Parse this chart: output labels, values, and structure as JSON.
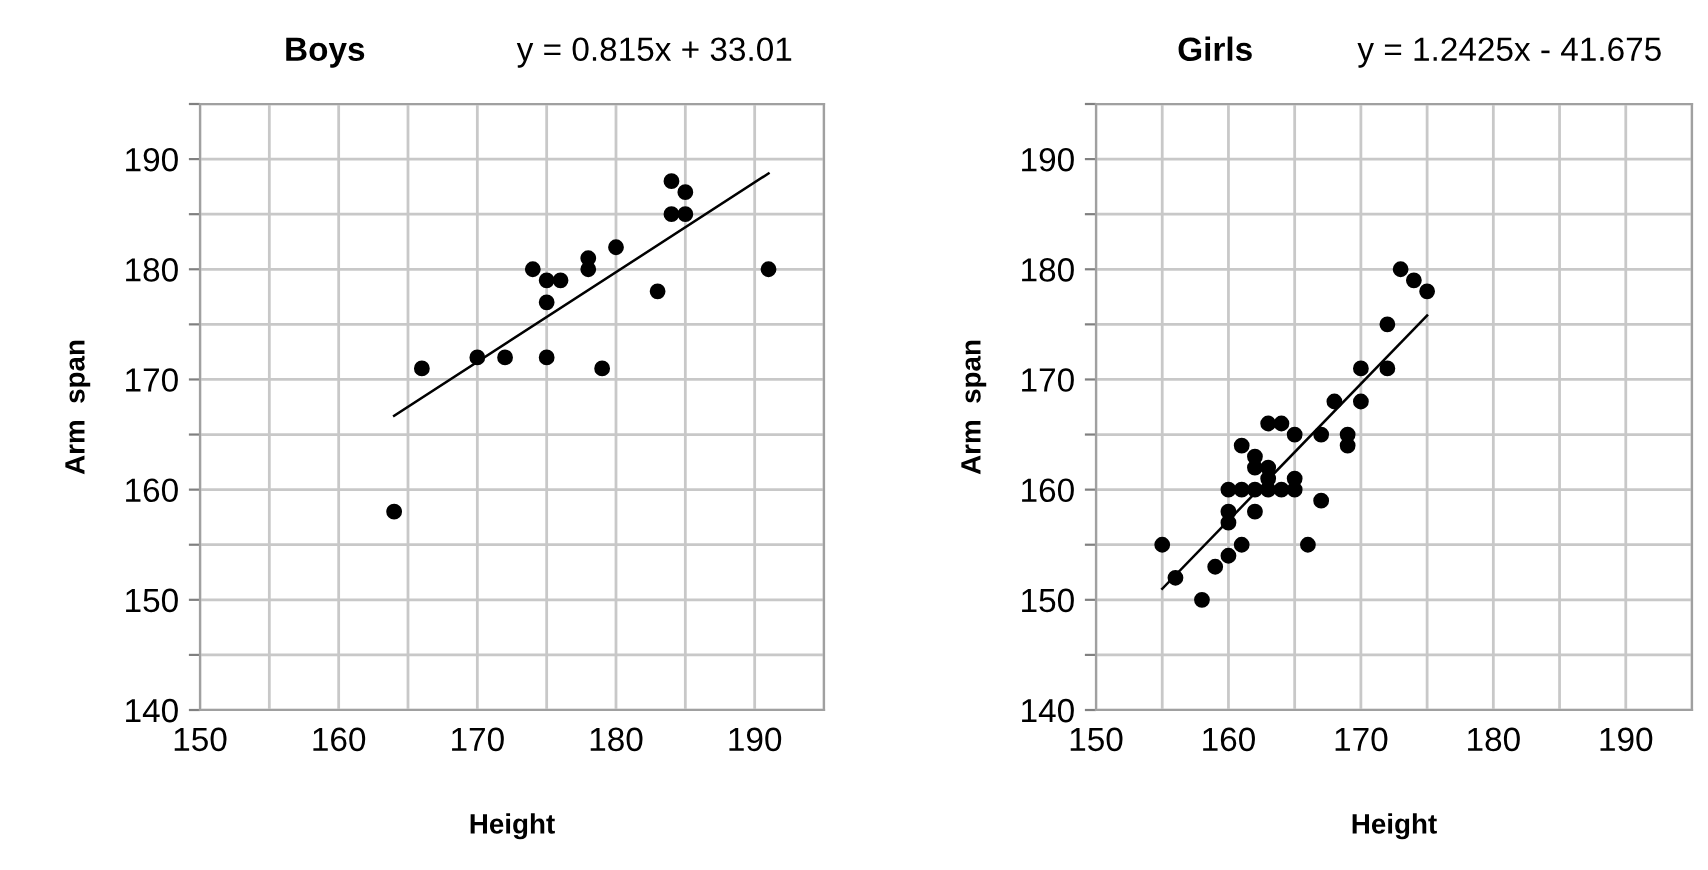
{
  "chart_data": [
    {
      "type": "scatter",
      "title": "Boys",
      "annotations": [
        "y = 0.815x + 33.01"
      ],
      "xlabel": "Height",
      "ylabel": "Arm  span",
      "xlim": [
        150,
        195
      ],
      "ylim": [
        140,
        195
      ],
      "xticks": [
        150,
        {
          "value": 155,
          "label": null
        },
        160,
        {
          "value": 165,
          "label": null
        },
        170,
        {
          "value": 175,
          "label": null
        },
        180,
        {
          "value": 185,
          "label": null
        },
        190,
        {
          "value": 195,
          "label": null
        }
      ],
      "yticks": [
        140,
        {
          "value": 145,
          "label": null
        },
        150,
        {
          "value": 155,
          "label": null
        },
        160,
        {
          "value": 165,
          "label": null
        },
        170,
        {
          "value": 175,
          "label": null
        },
        180,
        {
          "value": 185,
          "label": null
        },
        190,
        {
          "value": 195,
          "label": null
        }
      ],
      "grid": true,
      "series": [
        {
          "marker": "circle",
          "color": "#000000",
          "x": [
            184,
            185,
            184,
            185,
            174,
            175,
            176,
            178,
            178,
            180,
            175,
            191,
            183,
            170,
            172,
            175,
            166,
            179,
            164
          ],
          "values": [
            188,
            187,
            185,
            185,
            180,
            179,
            179,
            181,
            180,
            182,
            177,
            180,
            178,
            172,
            172,
            172,
            171,
            171,
            158
          ]
        },
        {
          "type": "line",
          "color": "#000000",
          "x": [
            164,
            191
          ],
          "values": [
            166.7,
            188.7
          ]
        }
      ]
    },
    {
      "type": "scatter",
      "title": "Girls",
      "annotations": [
        "y = 1.2425x - 41.675"
      ],
      "xlabel": "Height",
      "ylabel": "Arm  span",
      "xlim": [
        150,
        195
      ],
      "ylim": [
        140,
        195
      ],
      "xticks": [
        150,
        {
          "value": 155,
          "label": null
        },
        160,
        {
          "value": 165,
          "label": null
        },
        170,
        {
          "value": 175,
          "label": null
        },
        180,
        {
          "value": 185,
          "label": null
        },
        190,
        {
          "value": 195,
          "label": null
        }
      ],
      "yticks": [
        140,
        {
          "value": 145,
          "label": null
        },
        150,
        {
          "value": 155,
          "label": null
        },
        160,
        {
          "value": 165,
          "label": null
        },
        170,
        {
          "value": 175,
          "label": null
        },
        180,
        {
          "value": 185,
          "label": null
        },
        190,
        {
          "value": 195,
          "label": null
        }
      ],
      "grid": true,
      "series": [
        {
          "marker": "circle",
          "color": "#000000",
          "x": [
            155,
            156,
            158,
            159,
            160,
            161,
            160,
            160,
            162,
            160,
            161,
            162,
            163,
            164,
            165,
            165,
            163,
            162,
            163,
            162,
            161,
            163,
            164,
            165,
            167,
            167,
            166,
            168,
            169,
            169,
            170,
            170,
            172,
            172,
            173,
            174,
            175
          ],
          "values": [
            155,
            152,
            150,
            153,
            154,
            155,
            157,
            158,
            158,
            160,
            160,
            160,
            160,
            160,
            160,
            161,
            161,
            162,
            162,
            163,
            164,
            166,
            166,
            165,
            165,
            159,
            155,
            168,
            165,
            164,
            168,
            171,
            171,
            175,
            180,
            179,
            178
          ]
        },
        {
          "type": "line",
          "color": "#000000",
          "x": [
            155,
            175
          ],
          "values": [
            151.0,
            175.8
          ]
        }
      ]
    }
  ]
}
